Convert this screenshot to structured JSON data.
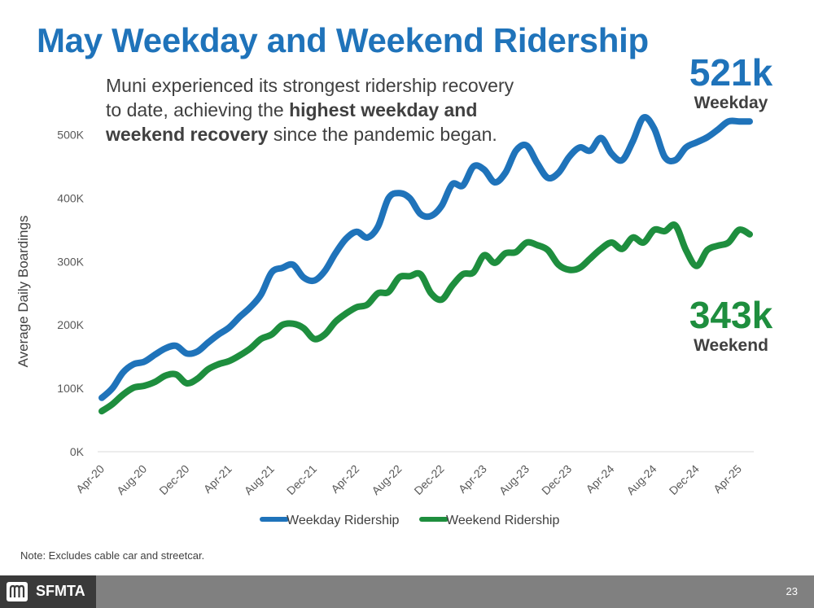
{
  "title": "May Weekday and Weekend Ridership",
  "subtitle": {
    "part1": "Muni experienced its strongest ridership recovery to date, achieving the ",
    "bold": "highest weekday and weekend recovery",
    "part2": " since the pandemic began."
  },
  "callouts": {
    "weekday": {
      "value": "521k",
      "label": "Weekday"
    },
    "weekend": {
      "value": "343k",
      "label": "Weekend"
    }
  },
  "note": "Note: Excludes cable car and streetcar.",
  "footer": {
    "brand": "SFMTA",
    "page": "23",
    "logo_icon": "muni-logo-icon"
  },
  "colors": {
    "weekday": "#1f73ba",
    "weekend": "#1e8e3e",
    "title": "#1f73ba"
  },
  "chart_data": {
    "type": "line",
    "title": "May Weekday and Weekend Ridership",
    "ylabel": "Average Daily Boardings",
    "xlabel": "",
    "ylim": [
      0,
      520000
    ],
    "yticks": [
      0,
      100000,
      200000,
      300000,
      400000,
      500000
    ],
    "ytick_labels": [
      "0K",
      "100K",
      "200K",
      "300K",
      "400K",
      "500K"
    ],
    "x_tick_labels": [
      "Apr-20",
      "Aug-20",
      "Dec-20",
      "Apr-21",
      "Aug-21",
      "Dec-21",
      "Apr-22",
      "Aug-22",
      "Dec-22",
      "Apr-23",
      "Aug-23",
      "Dec-23",
      "Apr-24",
      "Aug-24",
      "Dec-24",
      "Apr-25"
    ],
    "x": [
      "Apr-20",
      "May-20",
      "Jun-20",
      "Jul-20",
      "Aug-20",
      "Sep-20",
      "Oct-20",
      "Nov-20",
      "Dec-20",
      "Jan-21",
      "Feb-21",
      "Mar-21",
      "Apr-21",
      "May-21",
      "Jun-21",
      "Jul-21",
      "Aug-21",
      "Sep-21",
      "Oct-21",
      "Nov-21",
      "Dec-21",
      "Jan-22",
      "Feb-22",
      "Mar-22",
      "Apr-22",
      "May-22",
      "Jun-22",
      "Jul-22",
      "Aug-22",
      "Sep-22",
      "Oct-22",
      "Nov-22",
      "Dec-22",
      "Jan-23",
      "Feb-23",
      "Mar-23",
      "Apr-23",
      "May-23",
      "Jun-23",
      "Jul-23",
      "Aug-23",
      "Sep-23",
      "Oct-23",
      "Nov-23",
      "Dec-23",
      "Jan-24",
      "Feb-24",
      "Mar-24",
      "Apr-24",
      "May-24",
      "Jun-24",
      "Jul-24",
      "Aug-24",
      "Sep-24",
      "Oct-24",
      "Nov-24",
      "Dec-24",
      "Jan-25",
      "Feb-25",
      "Mar-25",
      "Apr-25",
      "May-25"
    ],
    "series": [
      {
        "name": "Weekday Ridership",
        "color": "#1f73ba",
        "values": [
          85000,
          100000,
          125000,
          138000,
          142000,
          153000,
          163000,
          167000,
          155000,
          158000,
          172000,
          185000,
          196000,
          213000,
          228000,
          248000,
          283000,
          290000,
          295000,
          275000,
          270000,
          285000,
          313000,
          336000,
          347000,
          338000,
          355000,
          400000,
          408000,
          400000,
          375000,
          372000,
          388000,
          422000,
          420000,
          450000,
          445000,
          425000,
          440000,
          475000,
          483000,
          455000,
          432000,
          440000,
          465000,
          480000,
          475000,
          495000,
          470000,
          460000,
          490000,
          527000,
          510000,
          465000,
          460000,
          480000,
          488000,
          496000,
          508000,
          521000,
          521000,
          521000
        ]
      },
      {
        "name": "Weekend Ridership",
        "color": "#1e8e3e",
        "values": [
          64000,
          75000,
          90000,
          101000,
          104000,
          110000,
          120000,
          122000,
          108000,
          115000,
          130000,
          138000,
          143000,
          152000,
          163000,
          178000,
          185000,
          200000,
          202000,
          195000,
          178000,
          185000,
          205000,
          218000,
          228000,
          232000,
          250000,
          252000,
          275000,
          277000,
          280000,
          250000,
          240000,
          262000,
          280000,
          283000,
          310000,
          298000,
          313000,
          315000,
          330000,
          326000,
          318000,
          295000,
          287000,
          290000,
          305000,
          320000,
          330000,
          320000,
          338000,
          330000,
          350000,
          348000,
          357000,
          318000,
          293000,
          318000,
          325000,
          330000,
          350000,
          343000
        ]
      }
    ],
    "legend": {
      "position": "bottom",
      "entries": [
        "Weekday Ridership",
        "Weekend Ridership"
      ]
    }
  }
}
